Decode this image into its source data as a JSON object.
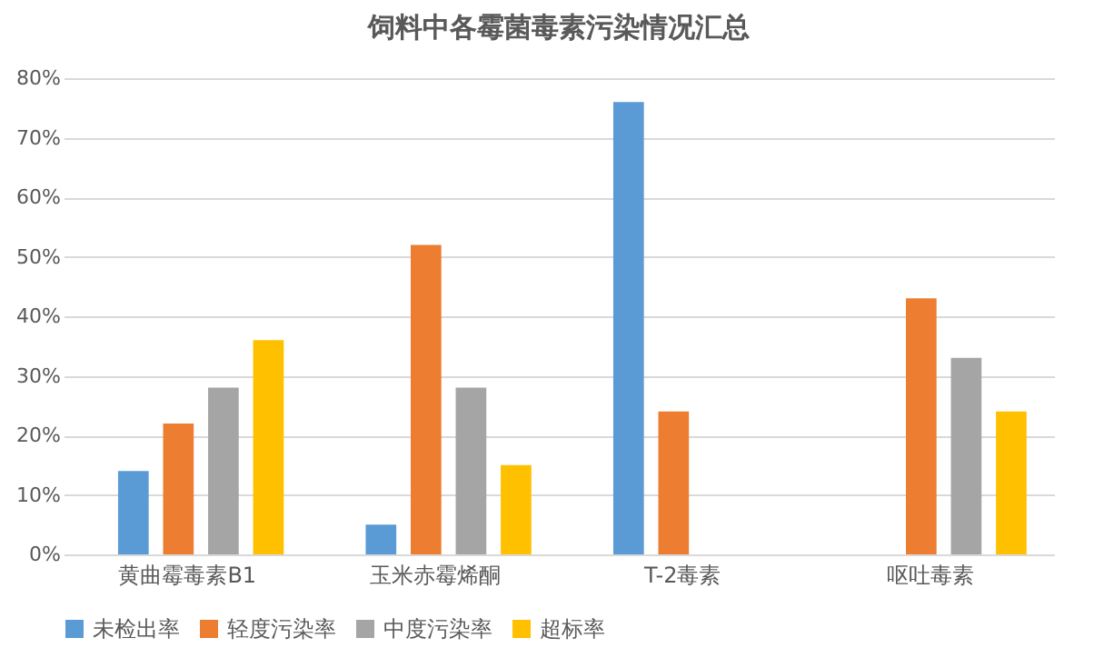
{
  "chart_data": {
    "type": "bar",
    "title": "饲料中各霉菌毒素污染情况汇总",
    "categories": [
      "黄曲霉毒素B1",
      "玉米赤霉烯酮",
      "T-2毒素",
      "呕吐毒素"
    ],
    "series": [
      {
        "name": "未检出率",
        "color": "#5b9bd5",
        "values": [
          14,
          5,
          76,
          null
        ]
      },
      {
        "name": "轻度污染率",
        "color": "#ed7d31",
        "values": [
          22,
          52,
          24,
          43
        ]
      },
      {
        "name": "中度污染率",
        "color": "#a5a5a5",
        "values": [
          28,
          28,
          null,
          33
        ]
      },
      {
        "name": "超标率",
        "color": "#ffc000",
        "values": [
          36,
          15,
          null,
          24
        ]
      }
    ],
    "ylim": [
      0,
      80
    ],
    "yticks": [
      {
        "value": 0,
        "label": "0%"
      },
      {
        "value": 10,
        "label": "10%"
      },
      {
        "value": 20,
        "label": "20%"
      },
      {
        "value": 30,
        "label": "30%"
      },
      {
        "value": 40,
        "label": "40%"
      },
      {
        "value": 50,
        "label": "50%"
      },
      {
        "value": 60,
        "label": "60%"
      },
      {
        "value": 70,
        "label": "70%"
      },
      {
        "value": 80,
        "label": "80%"
      }
    ],
    "grid": "y",
    "legend": "bottom"
  }
}
